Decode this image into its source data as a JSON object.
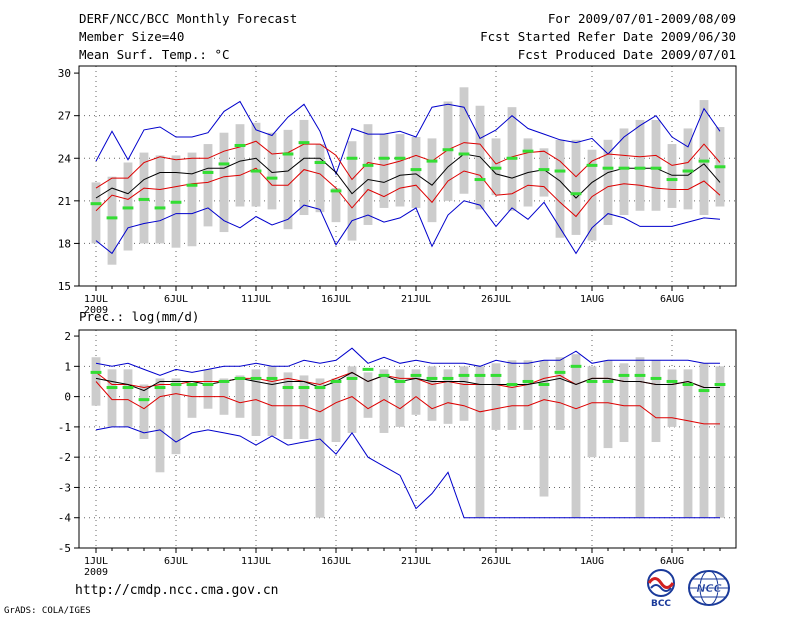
{
  "header": {
    "title": "DERF/NCC/BCC Monthly Forecast",
    "member_size": "Member Size=40",
    "variable": "Mean Surf. Temp.: °C",
    "period": "For 2009/07/01-2009/08/09",
    "fcst_started": "Fcst Started Refer Date 2009/06/30",
    "fcst_produced": "Fcst Produced Date 2009/07/01"
  },
  "footer": {
    "url": "http://cmdp.ncc.cma.gov.cn",
    "grads": "GrADS: COLA/IGES",
    "logo_bcc": "BCC",
    "logo_ncc": "NCC"
  },
  "colors": {
    "box": "#cccccc",
    "green": "#33dd33",
    "mean": "#000000",
    "red": "#dd0000",
    "blue": "#0000cc"
  },
  "chart_data": [
    {
      "type": "box-line",
      "title": "Mean Surf. Temp.: °C",
      "ylabel": "°C",
      "ylim": [
        15,
        30.5
      ],
      "yticks": [
        "30",
        "27",
        "24",
        "21",
        "18",
        "15"
      ],
      "ytick_values": [
        30,
        27,
        24,
        21,
        18,
        15
      ],
      "xtick_labels": [
        "1JUL",
        "6JUL",
        "11JUL",
        "16JUL",
        "21JUL",
        "26JUL",
        "1AUG",
        "6AUG"
      ],
      "xtick_days": [
        1,
        6,
        11,
        16,
        21,
        26,
        32,
        37
      ],
      "year_label": "2009",
      "days": 40,
      "box_low": [
        18,
        16.5,
        17.5,
        18,
        18,
        17.7,
        17.8,
        19.2,
        18.8,
        20.6,
        20.6,
        20.4,
        19,
        20,
        20.2,
        19.5,
        18.2,
        19.3,
        20.5,
        20.6,
        20.5,
        19.5,
        21,
        21.5,
        20.4,
        21.4,
        20.3,
        20.6,
        21.3,
        18.4,
        18.6,
        18.2,
        19.3,
        20,
        20.3,
        20.3,
        20.5,
        20.4,
        20,
        20.6
      ],
      "box_high": [
        22.3,
        22.7,
        23.7,
        24.4,
        24.2,
        24.2,
        24.4,
        25,
        25.8,
        26.4,
        26.5,
        25.8,
        26,
        26.7,
        25,
        21.9,
        25.2,
        26.4,
        25.7,
        25.7,
        25.5,
        25.4,
        28,
        29,
        27.7,
        25.4,
        27.6,
        25.4,
        24.7,
        25.3,
        25.3,
        24.6,
        25.3,
        26.1,
        26.7,
        26.7,
        25,
        26.1,
        28.1,
        26.2
      ],
      "green": [
        20.8,
        19.8,
        20.5,
        21.1,
        20.5,
        20.9,
        22.1,
        23,
        23.6,
        24.9,
        23.1,
        22.6,
        24.3,
        25.1,
        23.7,
        21.7,
        24,
        23.5,
        24,
        24,
        23.2,
        23.8,
        24.6,
        24.3,
        22.5,
        23.3,
        24,
        24.5,
        23.2,
        23.1,
        21.5,
        23.5,
        23.3,
        23.3,
        23.3,
        23.3,
        22.5,
        23.1,
        23.8,
        23.4
      ],
      "mean": [
        21.2,
        21.9,
        21.5,
        22.5,
        23,
        23,
        22.9,
        23.3,
        23.3,
        23.8,
        24,
        23,
        23.1,
        24,
        24,
        23,
        21.5,
        22.5,
        22.3,
        22.8,
        22.9,
        22.1,
        23.4,
        24.3,
        24.1,
        22.9,
        22.6,
        23,
        23.2,
        22.4,
        21.2,
        22.3,
        23,
        23.3,
        23.3,
        23.3,
        22.8,
        22.8,
        23.6,
        22.3
      ],
      "red_upper": [
        21.9,
        22.6,
        22.6,
        23.7,
        24.1,
        23.9,
        24,
        24,
        24.5,
        24.8,
        25.2,
        24.3,
        24.4,
        25,
        25,
        24.2,
        22.5,
        23.7,
        23.5,
        23.8,
        24.2,
        23.8,
        24.6,
        25.1,
        25,
        23.6,
        24.1,
        24.4,
        24.5,
        23.8,
        22.7,
        23.8,
        24.3,
        24.2,
        24.1,
        24.2,
        23.5,
        23.7,
        25,
        23.7
      ],
      "red_lower": [
        20.3,
        21.4,
        21.1,
        21.9,
        21.8,
        22,
        22.2,
        22.3,
        22.7,
        22.8,
        23.3,
        22.1,
        22.1,
        23.2,
        22.9,
        21.9,
        20.5,
        21.8,
        21.3,
        21.9,
        22.1,
        20.9,
        22.4,
        23.1,
        22.8,
        21.4,
        21.5,
        22.1,
        22,
        20.9,
        19.9,
        21.3,
        22,
        22.2,
        22.1,
        21.9,
        21.8,
        21.8,
        22.4,
        21.4
      ],
      "blue_max": [
        23.8,
        25.9,
        23.9,
        26,
        26.2,
        25.5,
        25.5,
        25.8,
        27.3,
        28,
        26,
        25.6,
        26.9,
        27.8,
        25.9,
        22.9,
        26.1,
        25.7,
        25.7,
        25.9,
        25.5,
        27.6,
        27.8,
        27.6,
        25.4,
        26,
        27,
        26.1,
        25.7,
        25.3,
        25.1,
        25.4,
        24.3,
        25.5,
        26.3,
        27,
        25.5,
        24.8,
        27.5,
        25.9
      ],
      "blue_min": [
        18.2,
        17.3,
        19.1,
        19.4,
        19.6,
        20.1,
        20.1,
        20.5,
        19.6,
        19.1,
        19.9,
        19.3,
        19.7,
        20.7,
        20.4,
        17.9,
        19.6,
        20,
        19.5,
        19.8,
        20.5,
        17.8,
        20,
        21,
        20.7,
        19.2,
        20.5,
        19.7,
        20.9,
        19.1,
        17.3,
        19.1,
        20.1,
        19.8,
        19.2,
        19.2,
        19.2,
        19.5,
        19.8,
        19.7
      ]
    },
    {
      "type": "box-line",
      "title": "Prec.: log(mm/d)",
      "ylabel": "log(mm/d)",
      "ylim": [
        -5,
        2.2
      ],
      "yticks": [
        "2",
        "1",
        "0",
        "-1",
        "-2",
        "-3",
        "-4",
        "-5"
      ],
      "ytick_values": [
        2,
        1,
        0,
        -1,
        -2,
        -3,
        -4,
        -5
      ],
      "xtick_labels": [
        "1JUL",
        "6JUL",
        "11JUL",
        "16JUL",
        "21JUL",
        "26JUL",
        "1AUG",
        "6AUG"
      ],
      "xtick_days": [
        1,
        6,
        11,
        16,
        21,
        26,
        32,
        37
      ],
      "year_label": "2009",
      "days": 40,
      "box_low": [
        -0.3,
        -1,
        -1,
        -1.4,
        -2.5,
        -1.9,
        -0.7,
        -0.4,
        -0.6,
        -0.7,
        -1.3,
        -1.3,
        -1.4,
        -1.4,
        -4,
        -1.5,
        -1.2,
        -0.7,
        -1.2,
        -1,
        -0.6,
        -0.8,
        -0.9,
        -0.8,
        -4,
        -1.1,
        -1.1,
        -1.1,
        -3.3,
        -1.1,
        -4,
        -2,
        -1.7,
        -1.5,
        -4,
        -1.5,
        -1,
        -4,
        -4,
        -4
      ],
      "box_high": [
        1.3,
        0.9,
        0.9,
        0.4,
        0.6,
        0.6,
        0.4,
        0.9,
        0.6,
        0.7,
        0.9,
        1,
        0.8,
        0.7,
        0.6,
        0.6,
        1,
        0.8,
        0.9,
        0.9,
        0.9,
        1,
        0.9,
        1,
        1,
        1.1,
        1.2,
        1.2,
        1.2,
        1.3,
        1.4,
        1,
        1.2,
        1.1,
        1.3,
        1.2,
        0.9,
        0.9,
        1.1,
        1
      ],
      "green": [
        0.8,
        0.3,
        0.3,
        -0.1,
        0.3,
        0.4,
        0.4,
        0.4,
        0.5,
        0.6,
        0.6,
        0.6,
        0.3,
        0.3,
        0.3,
        0.5,
        0.6,
        0.9,
        0.7,
        0.5,
        0.7,
        0.6,
        0.6,
        0.7,
        0.7,
        0.7,
        0.4,
        0.5,
        0.4,
        0.8,
        1,
        0.5,
        0.5,
        0.7,
        0.7,
        0.6,
        0.5,
        0.4,
        0.2,
        0.4
      ],
      "mean": [
        0.6,
        0.5,
        0.4,
        0.2,
        0.5,
        0.5,
        0.5,
        0.4,
        0.5,
        0.6,
        0.5,
        0.4,
        0.5,
        0.5,
        0.3,
        0.5,
        0.8,
        0.5,
        0.7,
        0.5,
        0.6,
        0.5,
        0.5,
        0.5,
        0.4,
        0.4,
        0.4,
        0.4,
        0.5,
        0.6,
        0.4,
        0.6,
        0.6,
        0.5,
        0.5,
        0.4,
        0.4,
        0.5,
        0.3,
        0.3
      ],
      "red_upper": [
        0.8,
        0.4,
        0.4,
        0.3,
        0.4,
        0.4,
        0.5,
        0.5,
        0.5,
        0.6,
        0.6,
        0.5,
        0.6,
        0.5,
        0.4,
        0.6,
        0.8,
        0.5,
        0.7,
        0.6,
        0.6,
        0.4,
        0.5,
        0.4,
        0.4,
        0.4,
        0.3,
        0.4,
        0.6,
        0.7,
        0.4,
        0.6,
        0.6,
        0.5,
        0.5,
        0.4,
        0.4,
        0.5,
        0.3,
        0.3
      ],
      "red_lower": [
        0.5,
        -0.1,
        -0.1,
        -0.4,
        0,
        0.1,
        0,
        0,
        0,
        -0.2,
        -0.1,
        -0.3,
        -0.3,
        -0.3,
        -0.5,
        -0.2,
        0,
        -0.4,
        -0.1,
        -0.4,
        0,
        -0.4,
        -0.2,
        -0.3,
        -0.5,
        -0.4,
        -0.3,
        -0.3,
        -0.1,
        -0.2,
        -0.4,
        -0.2,
        -0.2,
        -0.3,
        -0.3,
        -0.7,
        -0.7,
        -0.8,
        -0.9,
        -0.9
      ],
      "blue_max": [
        1.1,
        1,
        1.1,
        0.9,
        0.7,
        0.9,
        0.8,
        0.9,
        1,
        1,
        1.1,
        1,
        1,
        1.2,
        1.1,
        1.2,
        1.6,
        1.1,
        1.3,
        1.1,
        1.2,
        1.1,
        1.1,
        1.1,
        1,
        1.2,
        1.1,
        1.1,
        1.2,
        1.2,
        1.5,
        1.1,
        1.2,
        1.2,
        1.2,
        1.2,
        1.2,
        1.2,
        1.1,
        1.1
      ],
      "blue_min": [
        -1.1,
        -1,
        -1,
        -1.2,
        -1.1,
        -1.5,
        -1.2,
        -1.1,
        -1.2,
        -1.3,
        -1.6,
        -1.3,
        -1.6,
        -1.5,
        -1.4,
        -1.9,
        -1.2,
        -2,
        -2.3,
        -2.6,
        -3.7,
        -3.2,
        -2.5,
        -4,
        -4,
        -4,
        -4,
        -4,
        -4,
        -4,
        -4,
        -4,
        -4,
        -4,
        -4,
        -4,
        -4,
        -4,
        -4,
        -4
      ]
    }
  ]
}
